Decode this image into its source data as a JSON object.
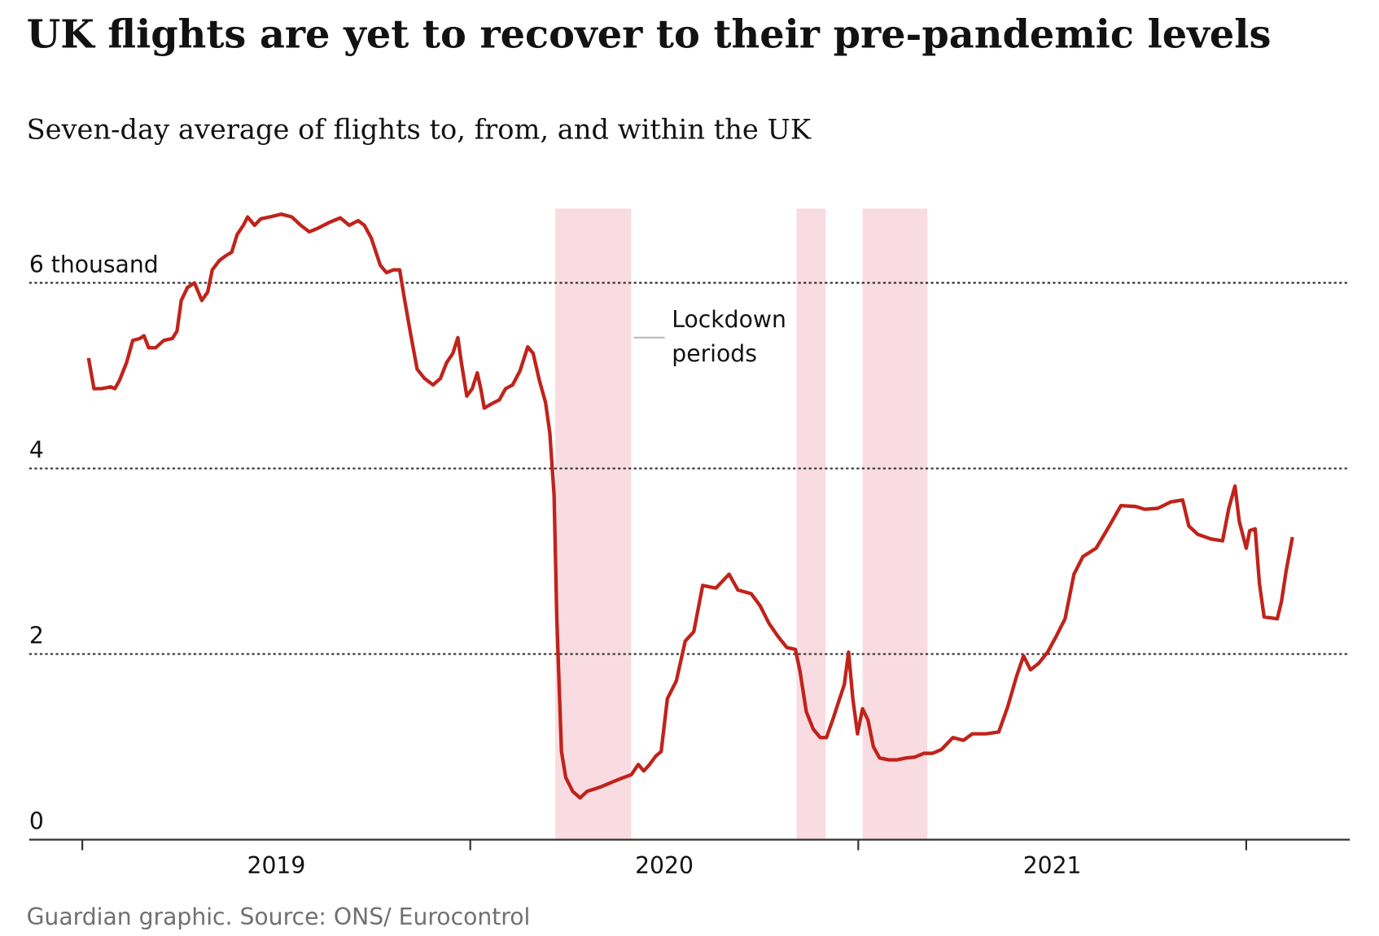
{
  "chart_data": {
    "type": "line",
    "title": "UK flights are yet to recover to their pre-pandemic levels",
    "subtitle": "Seven-day average of flights to, from, and within the UK",
    "source": "Guardian graphic. Source: ONS/ Eurocontrol",
    "shaded_label": "Lockdown periods",
    "shaded_color": "#f9dce1",
    "shaded_periods": [
      [
        2020.219,
        2020.415
      ],
      [
        2020.841,
        2020.916
      ],
      [
        2021.011,
        2021.178
      ]
    ],
    "xlim": [
      2018.863,
      2022.267
    ],
    "xticks": [
      {
        "value": 2019.5,
        "label": "2019"
      },
      {
        "value": 2020.5,
        "label": "2020"
      },
      {
        "value": 2021.5,
        "label": "2021"
      }
    ],
    "xtick_marks": [
      2019,
      2020,
      2021,
      2022
    ],
    "ylim": [
      0,
      6.8
    ],
    "yticks": [
      0,
      2,
      4,
      {
        "value": 6,
        "label": "6 thousand"
      }
    ],
    "grid": true,
    "series": [
      {
        "color": "#c0231b",
        "x": [
          2019.016,
          2019.03,
          2019.05,
          2019.073,
          2019.084,
          2019.096,
          2019.114,
          2019.13,
          2019.148,
          2019.159,
          2019.171,
          2019.189,
          2019.21,
          2019.232,
          2019.244,
          2019.255,
          2019.271,
          2019.289,
          2019.308,
          2019.323,
          2019.335,
          2019.353,
          2019.369,
          2019.385,
          2019.399,
          2019.415,
          2019.426,
          2019.444,
          2019.46,
          2019.483,
          2019.513,
          2019.54,
          2019.563,
          2019.585,
          2019.608,
          2019.636,
          2019.665,
          2019.688,
          2019.711,
          2019.727,
          2019.745,
          2019.768,
          2019.784,
          2019.802,
          2019.818,
          2019.831,
          2019.847,
          2019.863,
          2019.882,
          2019.904,
          2019.923,
          2019.939,
          2019.955,
          2019.968,
          2019.977,
          2019.991,
          2020.005,
          2020.018,
          2020.027,
          2020.036,
          2020.052,
          2020.075,
          2020.091,
          2020.109,
          2020.128,
          2020.148,
          2020.162,
          2020.178,
          2020.194,
          2020.205,
          2020.216,
          2020.223,
          2020.235,
          2020.246,
          2020.264,
          2020.283,
          2020.301,
          2020.337,
          2020.383,
          2020.415,
          2020.433,
          2020.447,
          2020.462,
          2020.478,
          2020.492,
          2020.508,
          2020.531,
          2020.554,
          2020.576,
          2020.599,
          2020.633,
          2020.667,
          2020.69,
          2020.724,
          2020.747,
          2020.77,
          2020.793,
          2020.816,
          2020.838,
          2020.85,
          2020.866,
          2020.884,
          2020.902,
          2020.918,
          2020.934,
          2020.952,
          2020.964,
          2020.975,
          2020.986,
          2020.998,
          2021.011,
          2021.025,
          2021.039,
          2021.055,
          2021.078,
          2021.1,
          2021.123,
          2021.146,
          2021.169,
          2021.191,
          2021.214,
          2021.244,
          2021.271,
          2021.294,
          2021.328,
          2021.362,
          2021.385,
          2021.408,
          2021.426,
          2021.444,
          2021.465,
          2021.488,
          2021.51,
          2021.533,
          2021.556,
          2021.579,
          2021.613,
          2021.647,
          2021.677,
          2021.715,
          2021.738,
          2021.772,
          2021.806,
          2021.836,
          2021.852,
          2021.875,
          2021.909,
          2021.939,
          2021.955,
          2021.971,
          2021.982,
          2022.0,
          2022.009,
          2022.023,
          2022.034,
          2022.046,
          2022.08,
          2022.091,
          2022.103,
          2022.119
        ],
        "values": [
          5.19,
          4.86,
          4.86,
          4.88,
          4.86,
          4.95,
          5.14,
          5.38,
          5.4,
          5.43,
          5.3,
          5.3,
          5.38,
          5.4,
          5.48,
          5.81,
          5.95,
          6.0,
          5.81,
          5.9,
          6.14,
          6.24,
          6.29,
          6.33,
          6.52,
          6.62,
          6.71,
          6.62,
          6.69,
          6.71,
          6.74,
          6.71,
          6.62,
          6.55,
          6.59,
          6.65,
          6.7,
          6.62,
          6.67,
          6.62,
          6.48,
          6.19,
          6.11,
          6.14,
          6.14,
          5.81,
          5.43,
          5.07,
          4.97,
          4.9,
          4.97,
          5.14,
          5.24,
          5.41,
          5.14,
          4.78,
          4.86,
          5.03,
          4.86,
          4.65,
          4.69,
          4.74,
          4.86,
          4.9,
          5.05,
          5.31,
          5.24,
          4.95,
          4.71,
          4.38,
          3.71,
          2.38,
          0.95,
          0.67,
          0.52,
          0.45,
          0.52,
          0.57,
          0.65,
          0.7,
          0.81,
          0.74,
          0.81,
          0.9,
          0.95,
          1.52,
          1.71,
          2.14,
          2.24,
          2.74,
          2.71,
          2.86,
          2.69,
          2.65,
          2.52,
          2.33,
          2.19,
          2.07,
          2.05,
          1.81,
          1.38,
          1.19,
          1.1,
          1.1,
          1.29,
          1.52,
          1.67,
          2.02,
          1.52,
          1.14,
          1.41,
          1.29,
          1.0,
          0.88,
          0.86,
          0.86,
          0.88,
          0.89,
          0.93,
          0.93,
          0.97,
          1.1,
          1.07,
          1.14,
          1.14,
          1.16,
          1.43,
          1.76,
          1.98,
          1.83,
          1.9,
          2.02,
          2.19,
          2.38,
          2.86,
          3.05,
          3.14,
          3.38,
          3.6,
          3.59,
          3.56,
          3.57,
          3.64,
          3.66,
          3.38,
          3.29,
          3.24,
          3.22,
          3.57,
          3.81,
          3.43,
          3.14,
          3.33,
          3.35,
          2.76,
          2.4,
          2.38,
          2.57,
          2.9,
          3.26
        ]
      }
    ]
  }
}
